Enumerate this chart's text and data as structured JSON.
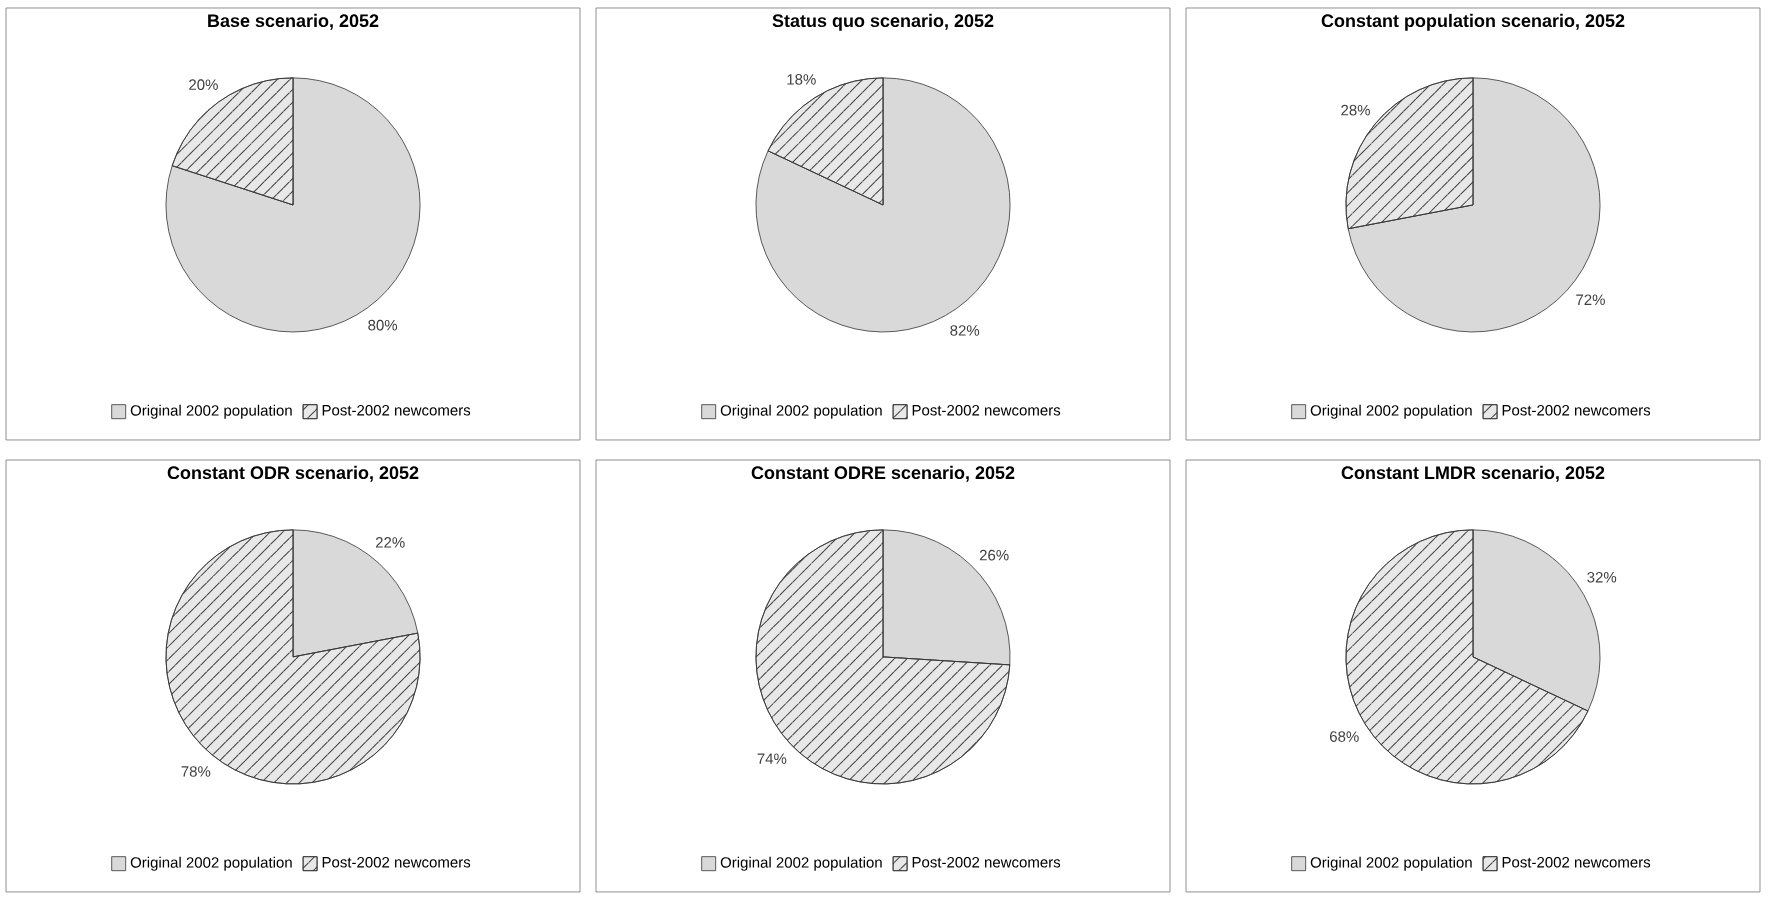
{
  "chart_data": [
    {
      "type": "pie",
      "title": "Base scenario, 2052",
      "categories": [
        "Original 2002 population",
        "Post-2002 newcomers"
      ],
      "values": [
        80,
        20
      ],
      "colors": [
        "#d9d9d9",
        "#404040"
      ],
      "value_labels": [
        "80%",
        "20%"
      ],
      "legend": "bottom"
    },
    {
      "type": "pie",
      "title": "Status quo scenario, 2052",
      "categories": [
        "Original 2002 population",
        "Post-2002 newcomers"
      ],
      "values": [
        82,
        18
      ],
      "colors": [
        "#d9d9d9",
        "#404040"
      ],
      "value_labels": [
        "82%",
        "18%"
      ],
      "legend": "bottom"
    },
    {
      "type": "pie",
      "title": "Constant population scenario, 2052",
      "categories": [
        "Original 2002 population",
        "Post-2002 newcomers"
      ],
      "values": [
        72,
        28
      ],
      "colors": [
        "#d9d9d9",
        "#404040"
      ],
      "value_labels": [
        "72%",
        "28%"
      ],
      "legend": "bottom"
    },
    {
      "type": "pie",
      "title": "Constant ODR scenario, 2052",
      "categories": [
        "Original 2002 population",
        "Post-2002 newcomers"
      ],
      "values": [
        22,
        78
      ],
      "colors": [
        "#d9d9d9",
        "#404040"
      ],
      "value_labels": [
        "22%",
        "78%"
      ],
      "legend": "bottom"
    },
    {
      "type": "pie",
      "title": "Constant ODRE scenario, 2052",
      "categories": [
        "Original 2002 population",
        "Post-2002 newcomers"
      ],
      "values": [
        26,
        74
      ],
      "colors": [
        "#d9d9d9",
        "#404040"
      ],
      "value_labels": [
        "26%",
        "74%"
      ],
      "legend": "bottom"
    },
    {
      "type": "pie",
      "title": "Constant LMDR scenario, 2052",
      "categories": [
        "Original 2002 population",
        "Post-2002 newcomers"
      ],
      "values": [
        32,
        68
      ],
      "colors": [
        "#d9d9d9",
        "#404040"
      ],
      "value_labels": [
        "32%",
        "68%"
      ],
      "legend": "bottom"
    }
  ]
}
